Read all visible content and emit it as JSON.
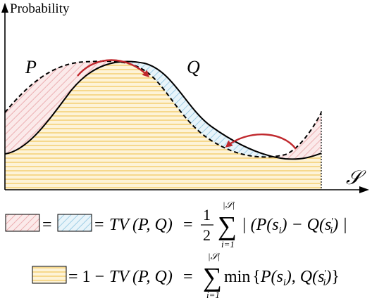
{
  "axes": {
    "y_label": "Probability",
    "x_label": "𝒮"
  },
  "curves": {
    "p_label": "P",
    "q_label": "Q"
  },
  "colors": {
    "p_region_hatch": "#e8a0a4",
    "p_region_fill": "#fbeaea",
    "q_region_hatch": "#8cc4e0",
    "q_region_fill": "#e8f4fa",
    "overlap_lines": "#f2c14e",
    "overlap_fill": "#fdf3d8",
    "arrow": "#c0282d",
    "curve": "#000000"
  },
  "formula1": {
    "eq1": "=",
    "eq2": "=",
    "tv": "TV",
    "args": "(P, Q)",
    "eq3": "=",
    "half_num": "1",
    "half_den": "2",
    "sum_upper": "|𝒮|",
    "sum_lower": "i=1",
    "body": "| (P(s",
    "sub_i": "i",
    "mid": ") − Q(s",
    "prime": "′",
    "sub_i2": "i",
    "end": ") |"
  },
  "formula2": {
    "eq1": "= 1 −",
    "tv": "TV",
    "args": "(P, Q)",
    "eq2": "=",
    "sum_upper": "|𝒮|",
    "sum_lower": "i=1",
    "min": "min",
    "open": "{",
    "p": "P(s",
    "sub_i": "i",
    "comma": "), Q(s",
    "prime": "′",
    "sub_i2": "i",
    "close_paren": ")",
    "close": "}"
  }
}
